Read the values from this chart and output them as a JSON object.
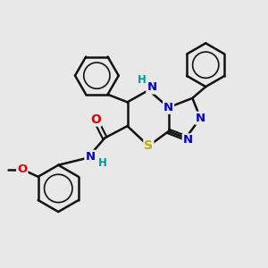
{
  "background_color": "#e8e8e8",
  "atom_colors": {
    "C": "#000000",
    "N": "#0000cc",
    "O": "#dd0000",
    "S": "#bbaa00",
    "H": "#009999"
  },
  "bond_color": "#111111",
  "bond_width": 1.8,
  "fig_w": 3.0,
  "fig_h": 3.0,
  "dpi": 100
}
